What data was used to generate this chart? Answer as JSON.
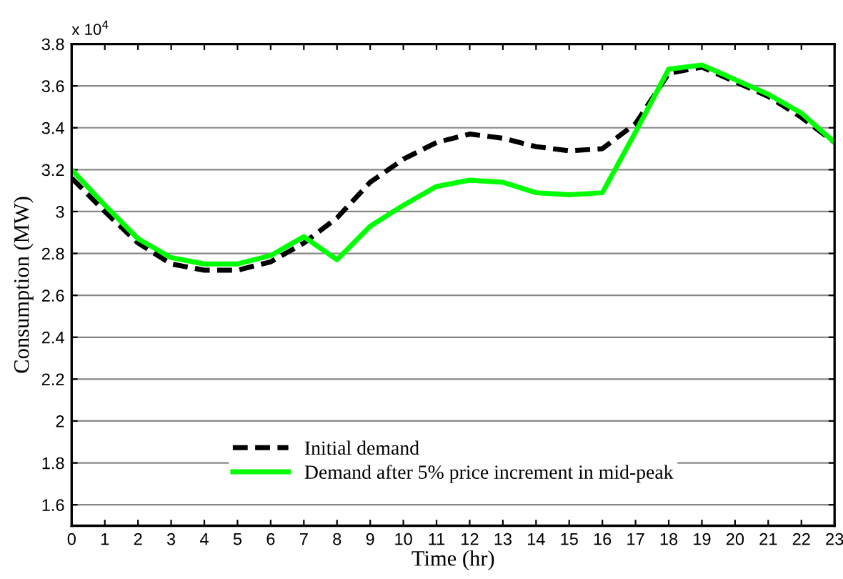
{
  "chart_data": {
    "type": "line",
    "xlabel": "Time (hr)",
    "ylabel": "Consumption (MW)",
    "annotations": [
      "x 10$^{4}$"
    ],
    "x": [
      0,
      1,
      2,
      3,
      4,
      5,
      6,
      7,
      8,
      9,
      10,
      11,
      12,
      13,
      14,
      15,
      16,
      17,
      18,
      19,
      20,
      21,
      22,
      23
    ],
    "series": [
      {
        "name": "Initial demand",
        "color": "#000000",
        "line_style": "dashed",
        "values": [
          3.16,
          3.0,
          2.85,
          2.75,
          2.72,
          2.72,
          2.76,
          2.85,
          2.97,
          3.14,
          3.25,
          3.33,
          3.37,
          3.35,
          3.31,
          3.29,
          3.3,
          3.42,
          3.66,
          3.69,
          3.62,
          3.55,
          3.45,
          3.33
        ]
      },
      {
        "name": "Demand after 5% price increment in mid-peak",
        "color": "#00ff00",
        "line_style": "solid",
        "values": [
          3.2,
          3.03,
          2.87,
          2.78,
          2.75,
          2.75,
          2.79,
          2.88,
          2.77,
          2.93,
          3.03,
          3.12,
          3.15,
          3.14,
          3.09,
          3.08,
          3.09,
          3.38,
          3.68,
          3.7,
          3.63,
          3.56,
          3.47,
          3.33
        ]
      }
    ],
    "xlim": [
      0,
      23
    ],
    "xticks": [
      0,
      1,
      2,
      3,
      4,
      5,
      6,
      7,
      8,
      9,
      10,
      11,
      12,
      13,
      14,
      15,
      16,
      17,
      18,
      19,
      20,
      21,
      22,
      23
    ],
    "ylim": [
      1.5,
      3.8
    ],
    "yticks": [
      1.6,
      1.8,
      2,
      2.2,
      2.4,
      2.6,
      2.8,
      3,
      3.2,
      3.4,
      3.6,
      3.8
    ],
    "grid": "y",
    "legend": "bottom",
    "marker": "none"
  }
}
